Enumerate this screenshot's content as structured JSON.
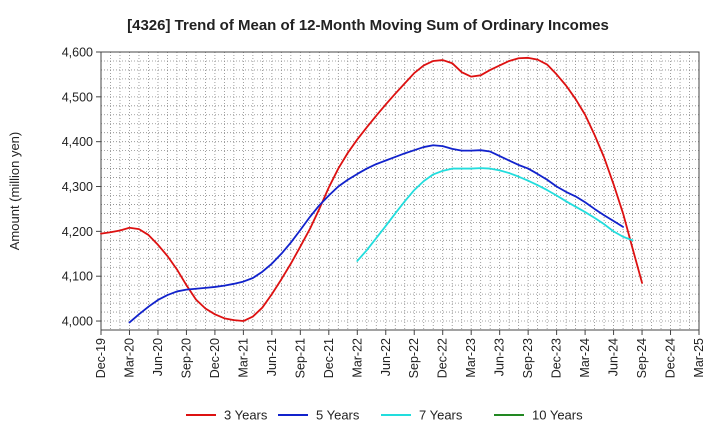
{
  "chart_data": {
    "type": "line",
    "title": "[4326]  Trend of Mean of 12-Month Moving Sum of Ordinary Incomes",
    "xlabel": "",
    "ylabel": "Amount (million yen)",
    "ylim": [
      3980,
      4600
    ],
    "yticks": [
      4000,
      4100,
      4200,
      4300,
      4400,
      4500,
      4600
    ],
    "ytick_labels": [
      "4,000",
      "4,100",
      "4,200",
      "4,300",
      "4,400",
      "4,500",
      "4,600"
    ],
    "x_start": "Dec-19",
    "x_end_month_index": 63,
    "xtick_labels": [
      "Dec-19",
      "Mar-20",
      "Jun-20",
      "Sep-20",
      "Dec-20",
      "Mar-21",
      "Jun-21",
      "Sep-21",
      "Dec-21",
      "Mar-22",
      "Jun-22",
      "Sep-22",
      "Dec-22",
      "Mar-23",
      "Jun-23",
      "Sep-23",
      "Dec-23",
      "Mar-24",
      "Jun-24",
      "Sep-24",
      "Dec-24",
      "Mar-25"
    ],
    "grid": true,
    "legend_position": "bottom",
    "series": [
      {
        "name": "3 Years",
        "color": "#dd1111",
        "start_index": 0,
        "values": [
          4195,
          4198,
          4202,
          4208,
          4205,
          4192,
          4170,
          4145,
          4115,
          4080,
          4048,
          4028,
          4015,
          4006,
          4002,
          4000,
          4010,
          4030,
          4060,
          4093,
          4128,
          4166,
          4205,
          4250,
          4298,
          4340,
          4375,
          4405,
          4432,
          4458,
          4483,
          4507,
          4530,
          4553,
          4570,
          4580,
          4582,
          4575,
          4555,
          4545,
          4548,
          4560,
          4570,
          4580,
          4586,
          4587,
          4583,
          4572,
          4550,
          4525,
          4495,
          4460,
          4415,
          4365,
          4305,
          4240,
          4162,
          4085
        ]
      },
      {
        "name": "5 Years",
        "color": "#1122cc",
        "start_index": 3,
        "values": [
          3997,
          4015,
          4032,
          4047,
          4058,
          4066,
          4070,
          4072,
          4074,
          4076,
          4079,
          4083,
          4088,
          4096,
          4110,
          4128,
          4150,
          4175,
          4203,
          4232,
          4258,
          4280,
          4300,
          4315,
          4328,
          4340,
          4350,
          4358,
          4366,
          4374,
          4381,
          4388,
          4392,
          4390,
          4384,
          4380,
          4380,
          4381,
          4378,
          4368,
          4358,
          4348,
          4340,
          4328,
          4315,
          4300,
          4288,
          4278,
          4265,
          4250,
          4236,
          4223,
          4210
        ]
      },
      {
        "name": "7 Years",
        "color": "#22dddd",
        "start_index": 27,
        "values": [
          4134,
          4158,
          4185,
          4212,
          4240,
          4267,
          4292,
          4312,
          4327,
          4335,
          4340,
          4340,
          4340,
          4341,
          4340,
          4336,
          4330,
          4322,
          4313,
          4303,
          4292,
          4280,
          4267,
          4255,
          4243,
          4230,
          4216,
          4200,
          4188,
          4180
        ]
      },
      {
        "name": "10 Years",
        "color": "#228822",
        "start_index": 0,
        "values": []
      }
    ]
  }
}
